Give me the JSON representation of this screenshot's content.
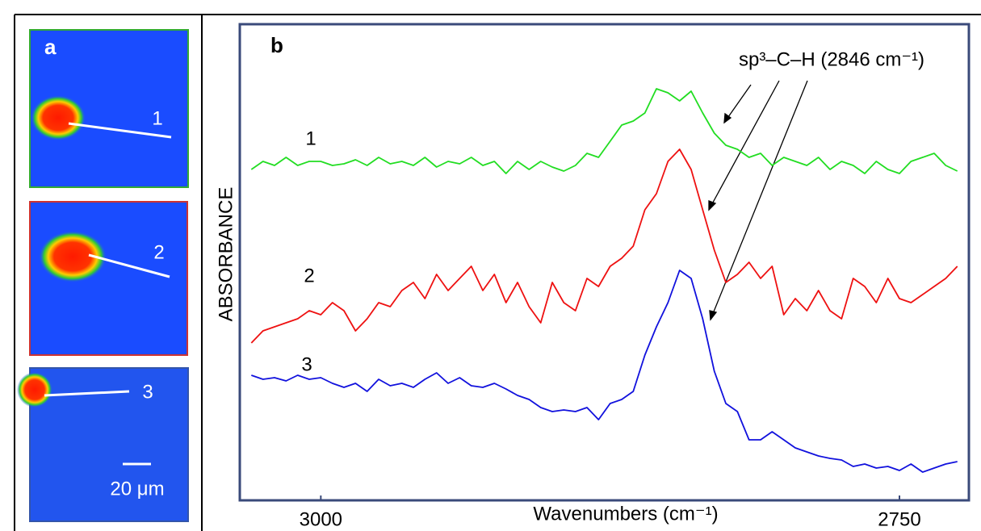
{
  "panel_a": {
    "label": "a",
    "images": [
      {
        "label": "1"
      },
      {
        "label": "2"
      },
      {
        "label": "3"
      }
    ],
    "scale_bar": "20 μm"
  },
  "chart_data": {
    "type": "line",
    "panel_label": "b",
    "annotation": "sp³–C–H (2846 cm⁻¹)",
    "x_label": "Wavenumbers (cm⁻¹)",
    "y_label": "ABSORBANCE",
    "xlim": [
      3035,
      2720
    ],
    "ylim": [
      0,
      59
    ],
    "xticks": [
      3000,
      2750
    ],
    "x": [
      3030,
      3025,
      3020,
      3015,
      3010,
      3005,
      3000,
      2995,
      2990,
      2985,
      2980,
      2975,
      2970,
      2965,
      2960,
      2955,
      2950,
      2945,
      2940,
      2935,
      2930,
      2925,
      2920,
      2915,
      2910,
      2905,
      2900,
      2895,
      2890,
      2885,
      2880,
      2875,
      2870,
      2865,
      2860,
      2855,
      2850,
      2845,
      2840,
      2835,
      2830,
      2825,
      2820,
      2815,
      2810,
      2805,
      2800,
      2795,
      2790,
      2785,
      2780,
      2775,
      2770,
      2765,
      2760,
      2755,
      2750,
      2745,
      2740,
      2735,
      2730,
      2725
    ],
    "series": [
      {
        "name": "1",
        "color": "#22dd22",
        "values": [
          41,
          42,
          41.5,
          42.5,
          41.5,
          42,
          42,
          41.5,
          41.7,
          42.2,
          41.5,
          42.5,
          41.7,
          42,
          41.5,
          42.5,
          41.3,
          42,
          41.7,
          42.5,
          41.5,
          42,
          40.5,
          42,
          41,
          42,
          41.3,
          40.8,
          41.5,
          43,
          42.5,
          44.5,
          46.5,
          47,
          48,
          51,
          50.5,
          49.5,
          50.7,
          48,
          45.5,
          44,
          43.5,
          42.5,
          43,
          41.5,
          42.5,
          42,
          41.5,
          42.5,
          41,
          42,
          41.5,
          40.5,
          42,
          41,
          40.5,
          42,
          42.5,
          43,
          41.5,
          40.8
        ]
      },
      {
        "name": "2",
        "color": "#ee1111",
        "values": [
          19.5,
          21,
          21.5,
          22,
          22.5,
          23.5,
          23,
          24.5,
          23.5,
          21,
          22.5,
          24.5,
          24,
          26,
          27,
          25,
          28,
          26,
          27.5,
          29,
          26,
          28,
          24.5,
          27,
          24,
          22,
          27,
          24.5,
          23.5,
          27.5,
          26.5,
          29,
          30,
          31.5,
          36,
          38,
          42,
          43.5,
          41,
          36,
          31,
          27,
          28,
          29.5,
          27.5,
          29,
          23,
          25,
          23.5,
          26,
          23.5,
          22.5,
          27.5,
          26.5,
          24.5,
          27.5,
          25,
          24.5,
          25.5,
          26.5,
          27.5,
          29
        ]
      },
      {
        "name": "3",
        "color": "#1111dd",
        "values": [
          15.5,
          15,
          15.2,
          14.8,
          15.5,
          15,
          15.2,
          14.5,
          14,
          14.5,
          13.5,
          15,
          14.2,
          14.5,
          14,
          15,
          15.8,
          14.5,
          15.2,
          14.2,
          14,
          14.5,
          13.8,
          13,
          12.5,
          11.5,
          11,
          11.2,
          11,
          11.5,
          10,
          12,
          12.5,
          13.5,
          18,
          21.5,
          24.5,
          28.5,
          27.5,
          22.5,
          16,
          12,
          11,
          7.5,
          7.5,
          8.5,
          7.5,
          6.5,
          6,
          5.5,
          5.2,
          5,
          4.2,
          4.5,
          4,
          4.2,
          3.7,
          4.5,
          3.5,
          4,
          4.5,
          4.8
        ]
      }
    ]
  }
}
